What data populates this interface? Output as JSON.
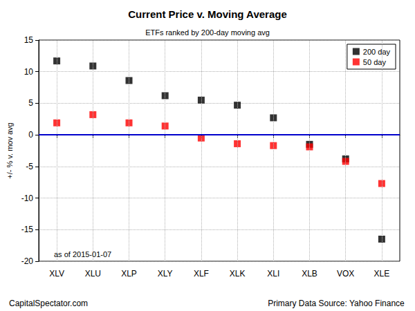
{
  "chart_data": {
    "type": "scatter",
    "title": "Current Price v. Moving Average",
    "subtitle": "ETFs ranked by 200-day moving avg",
    "y_label": "+/- % v. mov avg",
    "annotations": [
      "as of 2015-01-07"
    ],
    "source_left": "CapitalSpectator.com",
    "source_right": "Primary Data Source: Yahoo Finance",
    "categories": [
      "XLV",
      "XLU",
      "XLP",
      "XLY",
      "XLF",
      "XLK",
      "XLI",
      "XLB",
      "VOX",
      "XLE"
    ],
    "series": [
      {
        "name": "200 day",
        "color": "#000000",
        "marker": "square",
        "values": [
          11.7,
          10.9,
          8.6,
          6.2,
          5.5,
          4.7,
          2.7,
          -1.5,
          -3.8,
          -16.5
        ]
      },
      {
        "name": "50 day",
        "color": "#ff0000",
        "marker": "square",
        "values": [
          1.9,
          3.2,
          1.9,
          1.4,
          -0.5,
          -1.4,
          -1.7,
          -1.9,
          -4.2,
          -7.7
        ]
      }
    ],
    "hline": {
      "value": 0,
      "color": "#0000cc"
    },
    "ylim": [
      -20,
      15
    ],
    "yticks": [
      -20,
      -15,
      -10,
      -5,
      0,
      5,
      10,
      15
    ],
    "grid": true,
    "legend": "topright"
  }
}
